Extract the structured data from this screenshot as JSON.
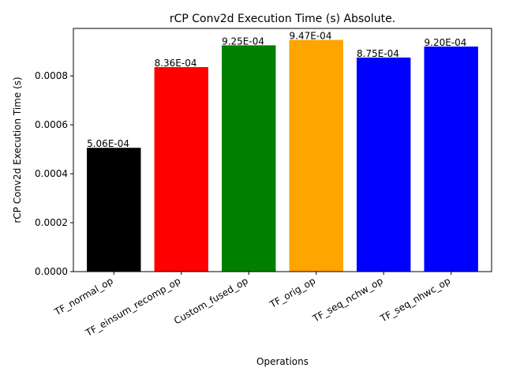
{
  "chart_data": {
    "type": "bar",
    "title": "rCP Conv2d Execution Time (s) Absolute.",
    "xlabel": "Operations",
    "ylabel": "rCP Conv2d Execution Time (s)",
    "categories": [
      "TF_normal_op",
      "TF_einsum_recomp_op",
      "Custom_fused_op",
      "TF_orig_op",
      "TF_seq_nchw_op",
      "TF_seq_nhwc_op"
    ],
    "values": [
      0.000506,
      0.000836,
      0.000925,
      0.000947,
      0.000875,
      0.00092
    ],
    "data_labels": [
      "5.06E-04",
      "8.36E-04",
      "9.25E-04",
      "9.47E-04",
      "8.75E-04",
      "9.20E-04"
    ],
    "colors": [
      "#000000",
      "#ff0000",
      "#008000",
      "#ffa500",
      "#0000ff",
      "#0000ff"
    ],
    "ylim": [
      0,
      0.000994
    ],
    "yticks": [
      0,
      0.0002,
      0.0004,
      0.0006,
      0.0008
    ],
    "ytick_labels": [
      "0.0000",
      "0.0002",
      "0.0004",
      "0.0006",
      "0.0008"
    ],
    "grid": false,
    "legend": "none"
  }
}
